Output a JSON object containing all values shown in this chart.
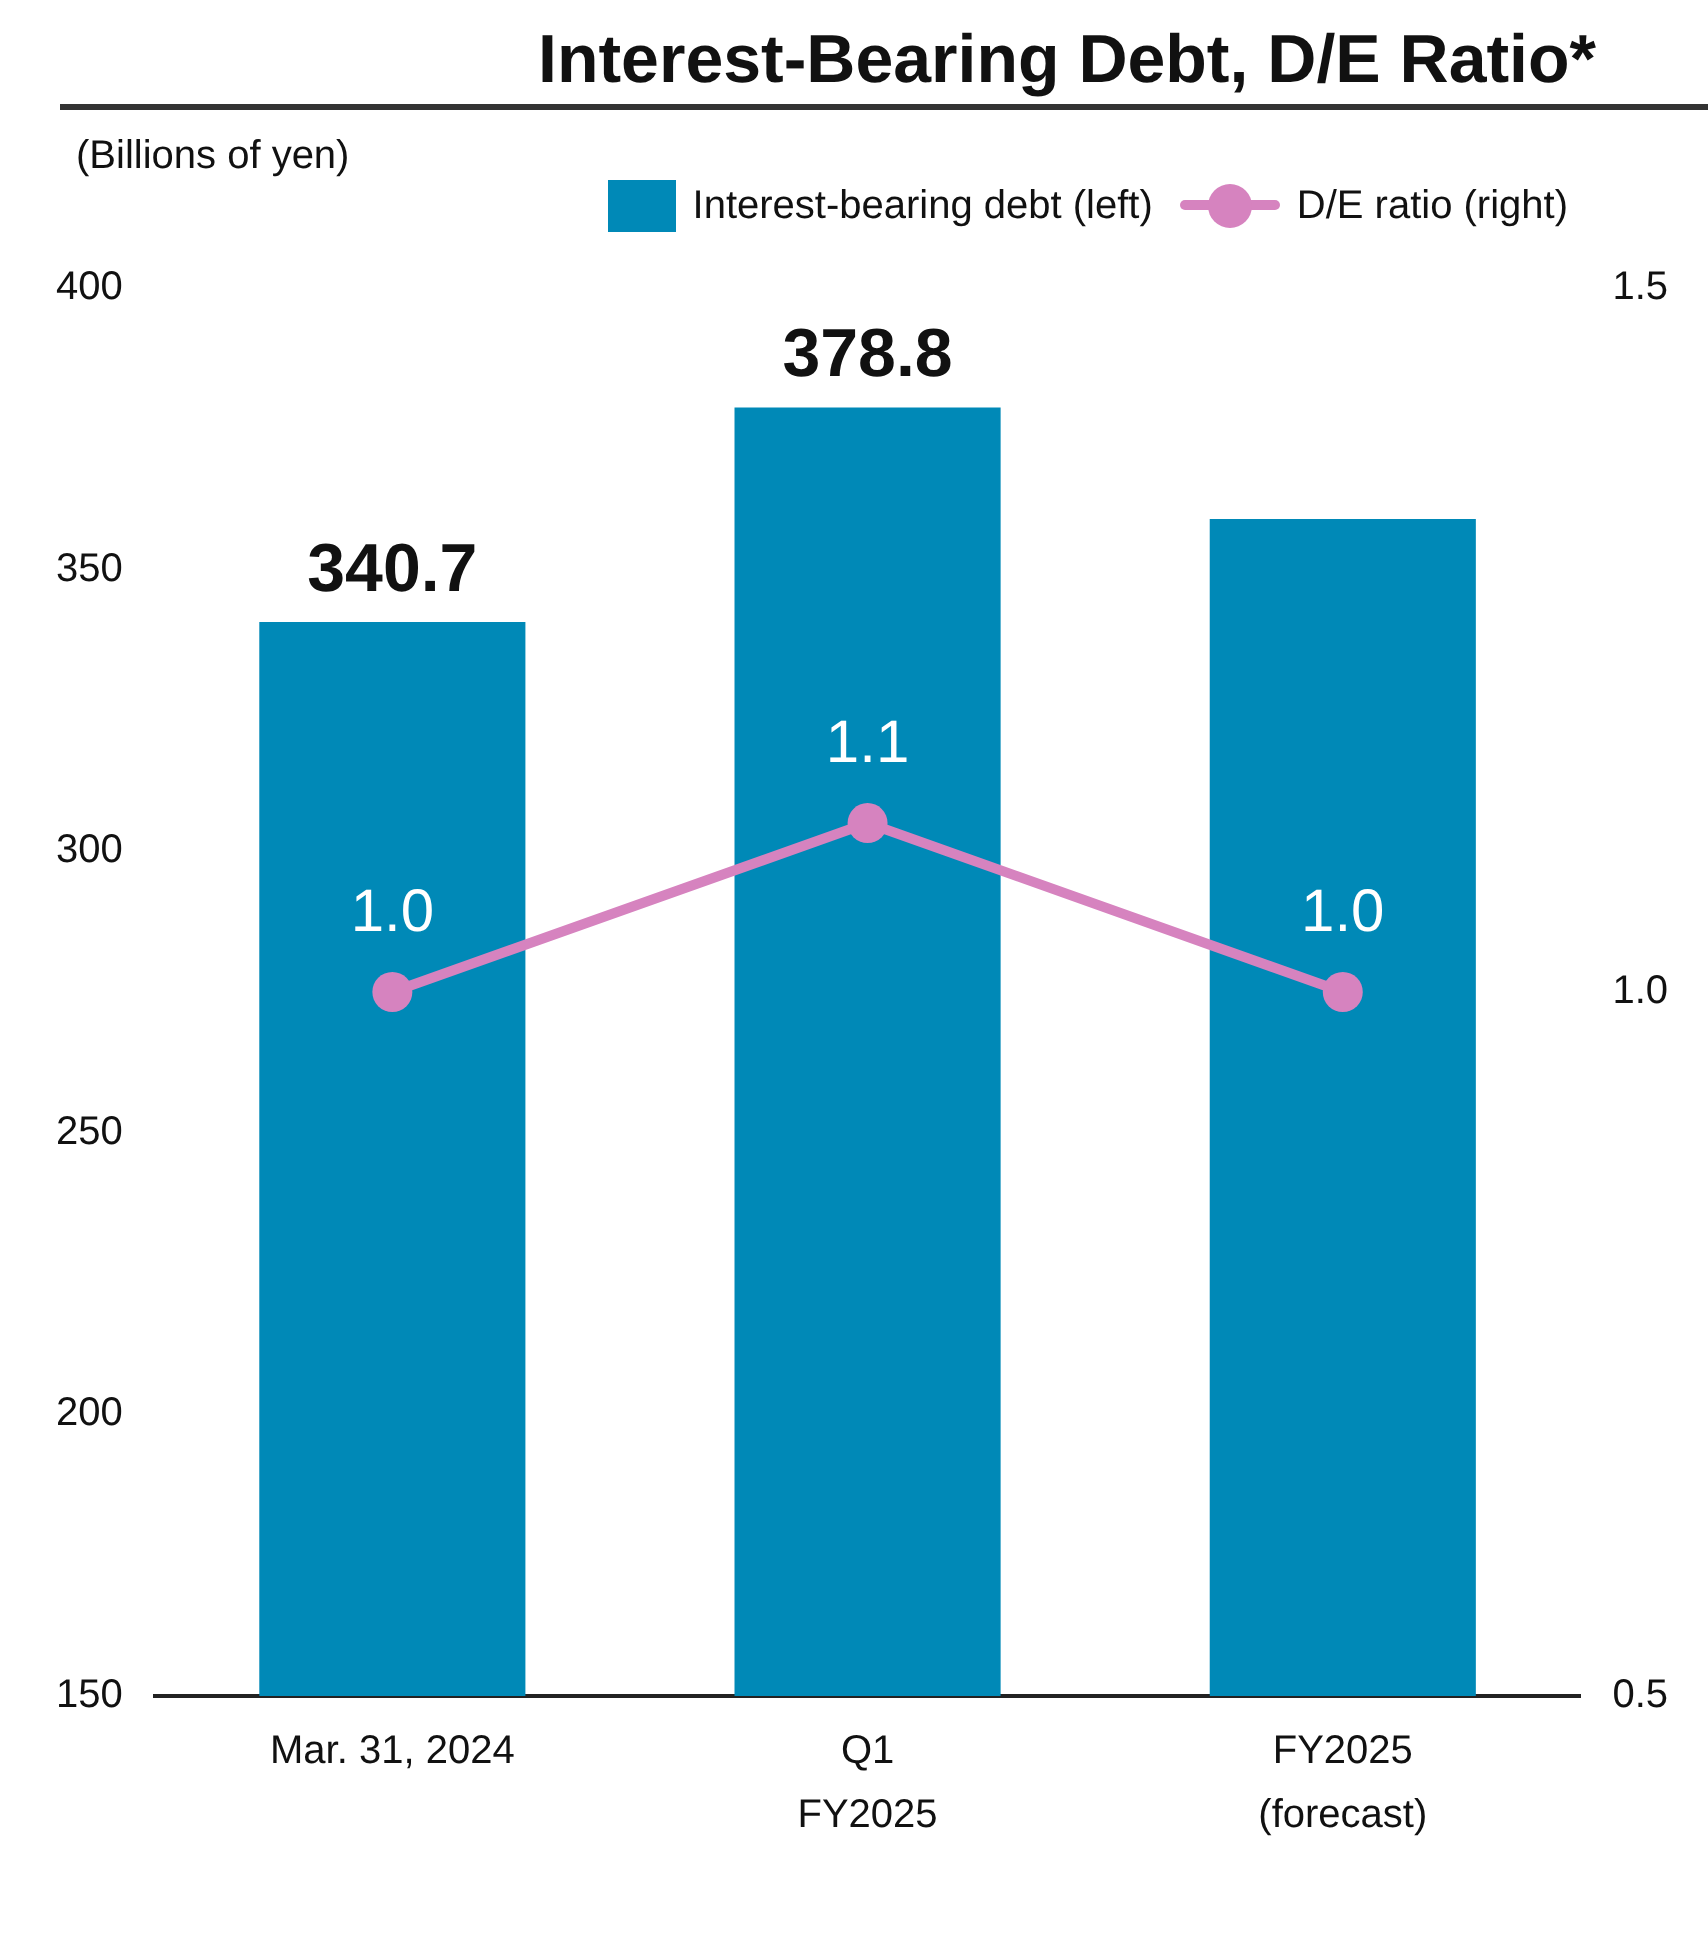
{
  "chart_data": {
    "type": "bar",
    "title": "Interest-Bearing Debt, D/E Ratio*",
    "ylabel": "(Billions of yen)",
    "categories": [
      "Mar. 31, 2024",
      "Q1\nFY2025",
      "FY2025\n(forecast)"
    ],
    "series": [
      {
        "name": "Interest-bearing debt (left)",
        "color": "#0089b7",
        "values": [
          340.7,
          378.8,
          359
        ],
        "value_labels": [
          "340.7",
          "378.8",
          null
        ]
      },
      {
        "name": "D/E ratio (right)",
        "type": "line",
        "axis": "y2",
        "color": "#d683bf",
        "values": [
          1.0,
          1.12,
          1.0
        ],
        "value_labels": [
          "1.0",
          "1.1",
          "1.0"
        ],
        "marker": "circle"
      }
    ],
    "ylim": [
      150,
      400
    ],
    "yticks": [
      150,
      200,
      250,
      300,
      350,
      400
    ],
    "y2lim": [
      0.5,
      1.5
    ],
    "y2ticks": [
      0.5,
      {
        "value": 1.0,
        "label": "1.0"
      },
      1.5
    ],
    "grid": false,
    "legend": "top right"
  }
}
